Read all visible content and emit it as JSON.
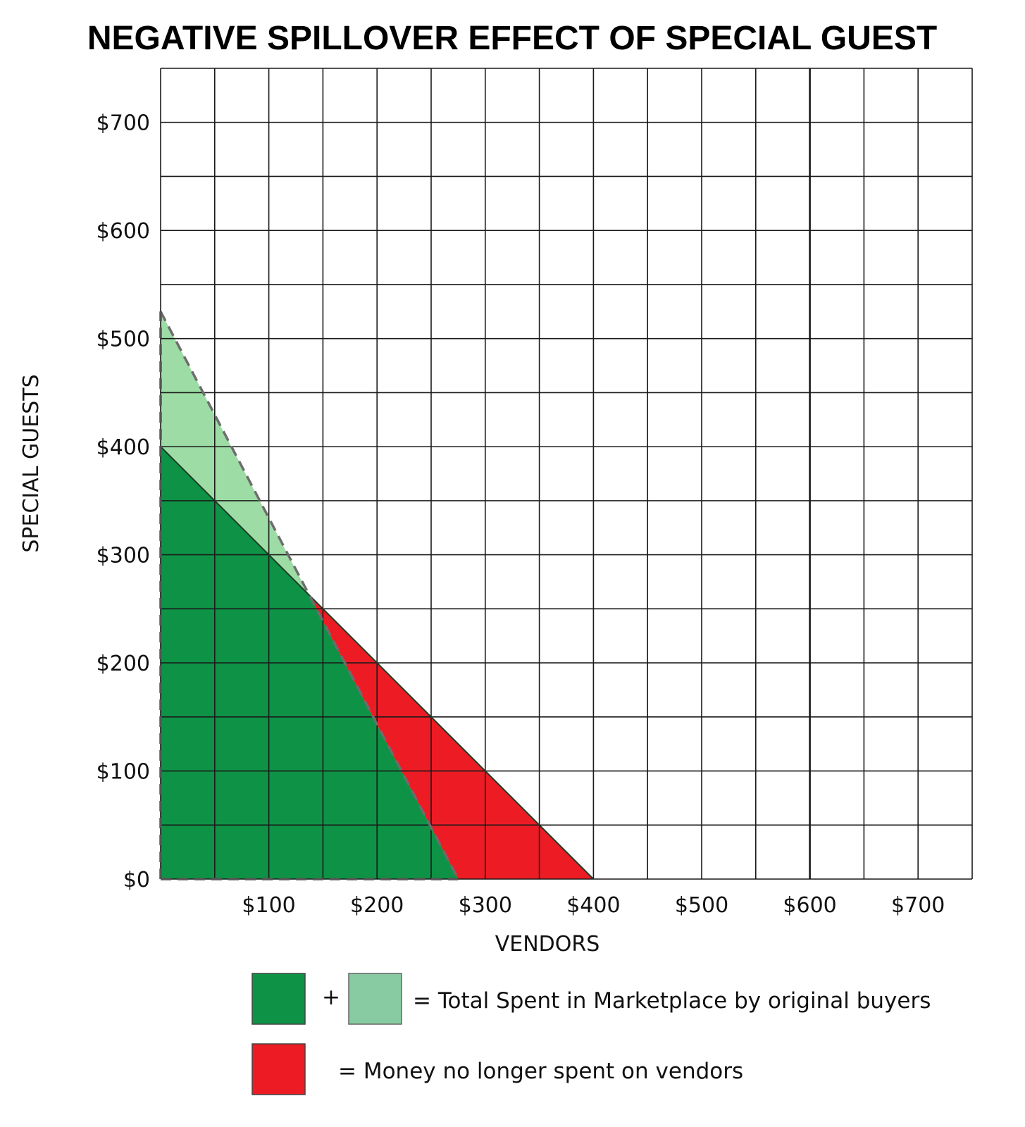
{
  "chart_data": {
    "type": "area",
    "title": "NEGATIVE SPILLOVER EFFECT OF SPECIAL GUEST",
    "xlabel": "VENDORS",
    "ylabel": "SPECIAL GUESTS",
    "xlim": [
      0,
      750
    ],
    "ylim": [
      0,
      750
    ],
    "grid_step": 50,
    "grid": true,
    "x_tick_labels": [
      {
        "value": 100,
        "label": "$100"
      },
      {
        "value": 200,
        "label": "$200"
      },
      {
        "value": 300,
        "label": "$300"
      },
      {
        "value": 400,
        "label": "$400"
      },
      {
        "value": 500,
        "label": "$500"
      },
      {
        "value": 600,
        "label": "$600"
      },
      {
        "value": 700,
        "label": "$700"
      }
    ],
    "y_tick_labels": [
      {
        "value": 0,
        "label": "$0"
      },
      {
        "value": 100,
        "label": "$100"
      },
      {
        "value": 200,
        "label": "$200"
      },
      {
        "value": 300,
        "label": "$300"
      },
      {
        "value": 400,
        "label": "$400"
      },
      {
        "value": 500,
        "label": "$500"
      },
      {
        "value": 600,
        "label": "$600"
      },
      {
        "value": 700,
        "label": "$700"
      }
    ],
    "regions": [
      {
        "id": "spent-dark",
        "color": "#0e9346",
        "points": [
          [
            0,
            0
          ],
          [
            0,
            400
          ],
          [
            137,
            263
          ],
          [
            275,
            0
          ]
        ]
      },
      {
        "id": "spent-light",
        "color": "#9ddca5",
        "points": [
          [
            0,
            400
          ],
          [
            0,
            525
          ],
          [
            137,
            263
          ]
        ]
      },
      {
        "id": "lost",
        "color": "#ed1c24",
        "points": [
          [
            137,
            263
          ],
          [
            400,
            0
          ],
          [
            275,
            0
          ]
        ]
      }
    ],
    "lines": [
      {
        "id": "original-budget-line",
        "style": "solid",
        "points": [
          [
            0,
            400
          ],
          [
            400,
            0
          ]
        ]
      },
      {
        "id": "new-budget-line",
        "style": "dashed",
        "points": [
          [
            0,
            525
          ],
          [
            275,
            0
          ]
        ]
      }
    ],
    "dashed_axes": true
  },
  "legend": {
    "plus": "+",
    "items": [
      {
        "text": "= Total Spent in Marketplace by original buyers",
        "colors": [
          "#0e9346",
          "#88cba2"
        ]
      },
      {
        "text": "= Money no longer spent on vendors",
        "colors": [
          "#ed1c24"
        ]
      }
    ]
  }
}
